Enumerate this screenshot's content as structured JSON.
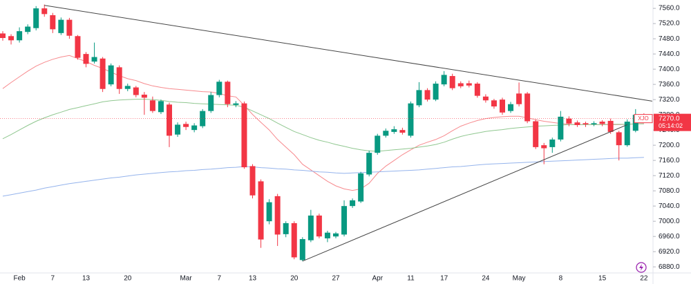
{
  "chart_data": {
    "type": "candlestick",
    "symbol": "XJO",
    "price_label": "7270.0",
    "countdown": "05:14:02",
    "up_color": "#089981",
    "down_color": "#f23645",
    "categories": [
      null,
      null,
      "Feb",
      null,
      null,
      null,
      "7",
      null,
      null,
      null,
      "13",
      null,
      null,
      null,
      null,
      "20",
      null,
      null,
      null,
      null,
      null,
      null,
      "Mar",
      null,
      null,
      null,
      "7",
      null,
      null,
      null,
      "13",
      null,
      null,
      null,
      null,
      "20",
      null,
      null,
      null,
      null,
      "27",
      null,
      null,
      null,
      null,
      "Apr",
      null,
      null,
      null,
      "11",
      null,
      null,
      null,
      "17",
      null,
      null,
      null,
      null,
      "24",
      null,
      null,
      null,
      "May",
      null,
      null,
      null,
      null,
      "8",
      null,
      null,
      null,
      null,
      "15",
      null,
      null,
      null,
      null,
      "22"
    ],
    "open": [
      7494,
      7487,
      7476,
      7498,
      7508,
      7560,
      7542,
      7495,
      7530,
      7487,
      7440,
      7420,
      7428,
      7360,
      7405,
      7348,
      7352,
      7333,
      7318,
      7287,
      7307,
      7228,
      7256,
      7240,
      7250,
      7290,
      7332,
      7367,
      7306,
      7310,
      7145,
      7105,
      7000,
      7066,
      6966,
      6995,
      6898,
      6950,
      7015,
      6955,
      6960,
      6965,
      7040,
      7052,
      7123,
      7180,
      7225,
      7235,
      7240,
      7225,
      7305,
      7345,
      7320,
      7360,
      7382,
      7363,
      7363,
      7362,
      7328,
      7318,
      7320,
      7290,
      7336,
      7336,
      7263,
      7200,
      7195,
      7215,
      7270,
      7260,
      7258,
      7255,
      7262,
      7264,
      7234,
      7200,
      7238,
      7278
    ],
    "high": [
      7500,
      7492,
      7510,
      7518,
      7566,
      7570,
      7548,
      7536,
      7535,
      7490,
      7445,
      7470,
      7432,
      7415,
      7410,
      7362,
      7356,
      7340,
      7328,
      7320,
      7312,
      7260,
      7262,
      7258,
      7295,
      7340,
      7372,
      7370,
      7316,
      7315,
      7150,
      7110,
      7058,
      7072,
      7000,
      7000,
      6958,
      7030,
      7020,
      6975,
      6972,
      7055,
      7060,
      7130,
      7186,
      7230,
      7244,
      7250,
      7246,
      7315,
      7366,
      7350,
      7368,
      7395,
      7388,
      7368,
      7370,
      7366,
      7334,
      7322,
      7325,
      7314,
      7365,
      7340,
      7268,
      7206,
      7220,
      7290,
      7276,
      7265,
      7262,
      7263,
      7266,
      7270,
      7238,
      7268,
      7295,
      7284
    ],
    "low": [
      7475,
      7465,
      7470,
      7492,
      7502,
      7538,
      7495,
      7490,
      7480,
      7425,
      7405,
      7415,
      7340,
      7355,
      7335,
      7342,
      7326,
      7280,
      7285,
      7282,
      7195,
      7222,
      7240,
      7234,
      7245,
      7285,
      7326,
      7300,
      7300,
      7138,
      7060,
      6930,
      6992,
      6935,
      6958,
      6900,
      6895,
      6945,
      6955,
      6945,
      6955,
      6960,
      7035,
      7048,
      7118,
      7175,
      7220,
      7230,
      7228,
      7220,
      7300,
      7315,
      7316,
      7355,
      7345,
      7350,
      7352,
      7325,
      7312,
      7296,
      7280,
      7285,
      7302,
      7258,
      7190,
      7150,
      7180,
      7210,
      7250,
      7248,
      7248,
      7250,
      7250,
      7230,
      7160,
      7196,
      7234,
      7266
    ],
    "close": [
      7482,
      7476,
      7500,
      7512,
      7560,
      7545,
      7505,
      7530,
      7488,
      7430,
      7414,
      7432,
      7348,
      7410,
      7348,
      7356,
      7332,
      7325,
      7290,
      7316,
      7225,
      7254,
      7248,
      7252,
      7290,
      7332,
      7367,
      7308,
      7310,
      7142,
      7068,
      6952,
      7050,
      6965,
      6995,
      6905,
      6953,
      7015,
      6960,
      6970,
      6968,
      7040,
      7055,
      7126,
      7180,
      7225,
      7238,
      7242,
      7233,
      7310,
      7345,
      7320,
      7362,
      7385,
      7350,
      7355,
      7357,
      7330,
      7318,
      7302,
      7286,
      7308,
      7308,
      7263,
      7195,
      7192,
      7215,
      7275,
      7257,
      7253,
      7255,
      7258,
      7256,
      7235,
      7200,
      7262,
      7280,
      7270
    ],
    "series": [
      {
        "type": "line",
        "color": "#f7898d",
        "values": [
          7349,
          7365,
          7380,
          7395,
          7408,
          7418,
          7426,
          7432,
          7436,
          7428,
          7420,
          7410,
          7402,
          7392,
          7383,
          7375,
          7370,
          7362,
          7356,
          7352,
          7349,
          7347,
          7345,
          7343,
          7341,
          7340,
          7336,
          7330,
          7327,
          7305,
          7281,
          7260,
          7240,
          7215,
          7195,
          7175,
          7150,
          7135,
          7120,
          7105,
          7093,
          7085,
          7081,
          7085,
          7100,
          7126,
          7145,
          7160,
          7175,
          7188,
          7200,
          7208,
          7215,
          7225,
          7238,
          7250,
          7258,
          7265,
          7270,
          7273,
          7275,
          7276,
          7276,
          7272,
          7267,
          7263,
          7260,
          7257,
          7255,
          7254,
          7254,
          7254,
          7254,
          7254,
          7254,
          7255,
          7256,
          7257
        ]
      },
      {
        "type": "line",
        "color": "#8fc78f",
        "values": [
          7217,
          7228,
          7240,
          7252,
          7263,
          7272,
          7280,
          7287,
          7294,
          7299,
          7304,
          7309,
          7314,
          7317,
          7319,
          7320,
          7321,
          7321,
          7320,
          7318,
          7315,
          7313,
          7312,
          7310,
          7309,
          7308,
          7307,
          7306,
          7305,
          7300,
          7290,
          7280,
          7270,
          7258,
          7247,
          7236,
          7228,
          7220,
          7213,
          7208,
          7202,
          7197,
          7192,
          7188,
          7185,
          7184,
          7186,
          7188,
          7190,
          7192,
          7195,
          7198,
          7202,
          7208,
          7216,
          7223,
          7228,
          7232,
          7236,
          7239,
          7241,
          7244,
          7246,
          7248,
          7250,
          7251,
          7252,
          7253,
          7254,
          7254,
          7254,
          7254,
          7254,
          7255,
          7255,
          7255,
          7256,
          7256
        ]
      },
      {
        "type": "line",
        "color": "#94b3ec",
        "values": [
          7066,
          7070,
          7074,
          7078,
          7082,
          7087,
          7091,
          7095,
          7099,
          7102,
          7105,
          7108,
          7111,
          7114,
          7116,
          7119,
          7122,
          7124,
          7126,
          7128,
          7130,
          7131,
          7133,
          7134,
          7136,
          7137,
          7139,
          7141,
          7142,
          7144,
          7143,
          7141,
          7140,
          7138,
          7137,
          7135,
          7134,
          7132,
          7130,
          7129,
          7127,
          7126,
          7127,
          7128,
          7129,
          7130,
          7131,
          7132,
          7133,
          7134,
          7135,
          7137,
          7139,
          7141,
          7143,
          7144,
          7146,
          7148,
          7150,
          7151,
          7152,
          7153,
          7154,
          7155,
          7156,
          7157,
          7158,
          7159,
          7160,
          7161,
          7162,
          7163,
          7164,
          7165,
          7166,
          7166,
          7167,
          7168
        ]
      }
    ],
    "trendlines": [
      {
        "color": "#444444",
        "x": [
          5,
          78
        ],
        "y": [
          7568,
          7316
        ]
      },
      {
        "color": "#444444",
        "x": [
          36,
          75
        ],
        "y": [
          6895,
          7254
        ]
      }
    ],
    "ylim": [
      6864,
      7582
    ],
    "yticks": [
      {
        "value": 6880,
        "label": "6880.0"
      },
      {
        "value": 6920,
        "label": "6920.0"
      },
      {
        "value": 6960,
        "label": "6960.0"
      },
      {
        "value": 7000,
        "label": "7000.0"
      },
      {
        "value": 7040,
        "label": "7040.0"
      },
      {
        "value": 7080,
        "label": "7080.0"
      },
      {
        "value": 7120,
        "label": "7120.0"
      },
      {
        "value": 7160,
        "label": "7160.0"
      },
      {
        "value": 7200,
        "label": "7200.0"
      },
      {
        "value": 7240,
        "label": "7240.0"
      },
      {
        "value": 7280,
        "label": "7280.0"
      },
      {
        "value": 7320,
        "label": "7320.0"
      },
      {
        "value": 7360,
        "label": "7360.0"
      },
      {
        "value": 7400,
        "label": "7400.0"
      },
      {
        "value": 7440,
        "label": "7440.0"
      },
      {
        "value": 7480,
        "label": "7480.0"
      },
      {
        "value": 7520,
        "label": "7520.0"
      },
      {
        "value": 7560,
        "label": "7560.0"
      }
    ]
  }
}
